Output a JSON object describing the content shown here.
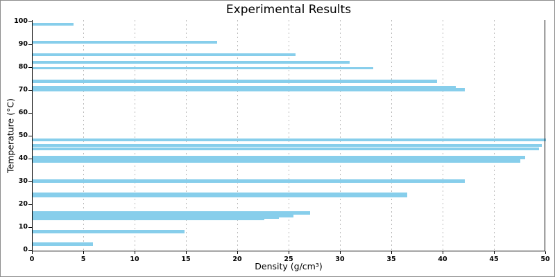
{
  "chart_data": {
    "type": "bar",
    "orientation": "horizontal",
    "title": "Experimental Results",
    "xlabel": "Density (g/cm³)",
    "ylabel": "Temperature (°C)",
    "xlim": [
      0,
      50
    ],
    "ylim": [
      0,
      100
    ],
    "x_ticks": [
      0,
      5,
      10,
      15,
      20,
      25,
      30,
      35,
      40,
      45,
      50
    ],
    "y_ticks": [
      0,
      10,
      20,
      30,
      40,
      50,
      60,
      70,
      80,
      90,
      100
    ],
    "grid": "vertical-dashed",
    "legend": "none",
    "bar_color": "#87CEEB",
    "grid_color": "#b9b9b9",
    "spine_color": "#000000",
    "bars": [
      {
        "temperature": 98.7,
        "density": 4.0,
        "thickness": 1.2
      },
      {
        "temperature": 90.8,
        "density": 18.0,
        "thickness": 1.2
      },
      {
        "temperature": 85.4,
        "density": 25.6,
        "thickness": 1.2
      },
      {
        "temperature": 82.0,
        "density": 30.9,
        "thickness": 1.3
      },
      {
        "temperature": 79.4,
        "density": 33.2,
        "thickness": 1.1
      },
      {
        "temperature": 73.7,
        "density": 39.4,
        "thickness": 1.3
      },
      {
        "temperature": 71.0,
        "density": 41.2,
        "thickness": 1.4
      },
      {
        "temperature": 70.1,
        "density": 42.1,
        "thickness": 1.3
      },
      {
        "temperature": 48.1,
        "density": 50.0,
        "thickness": 1.4
      },
      {
        "temperature": 45.6,
        "density": 49.6,
        "thickness": 1.3
      },
      {
        "temperature": 44.1,
        "density": 49.3,
        "thickness": 1.3
      },
      {
        "temperature": 40.3,
        "density": 48.0,
        "thickness": 1.5
      },
      {
        "temperature": 39.3,
        "density": 47.5,
        "thickness": 2.2
      },
      {
        "temperature": 30.0,
        "density": 42.1,
        "thickness": 1.4
      },
      {
        "temperature": 24.0,
        "density": 36.5,
        "thickness": 2.0
      },
      {
        "temperature": 16.1,
        "density": 27.0,
        "thickness": 1.3
      },
      {
        "temperature": 14.9,
        "density": 25.4,
        "thickness": 1.3
      },
      {
        "temperature": 13.9,
        "density": 24.0,
        "thickness": 1.0
      },
      {
        "temperature": 13.2,
        "density": 22.6,
        "thickness": 0.8
      },
      {
        "temperature": 7.9,
        "density": 14.8,
        "thickness": 1.5
      },
      {
        "temperature": 2.5,
        "density": 5.9,
        "thickness": 1.3
      }
    ]
  }
}
